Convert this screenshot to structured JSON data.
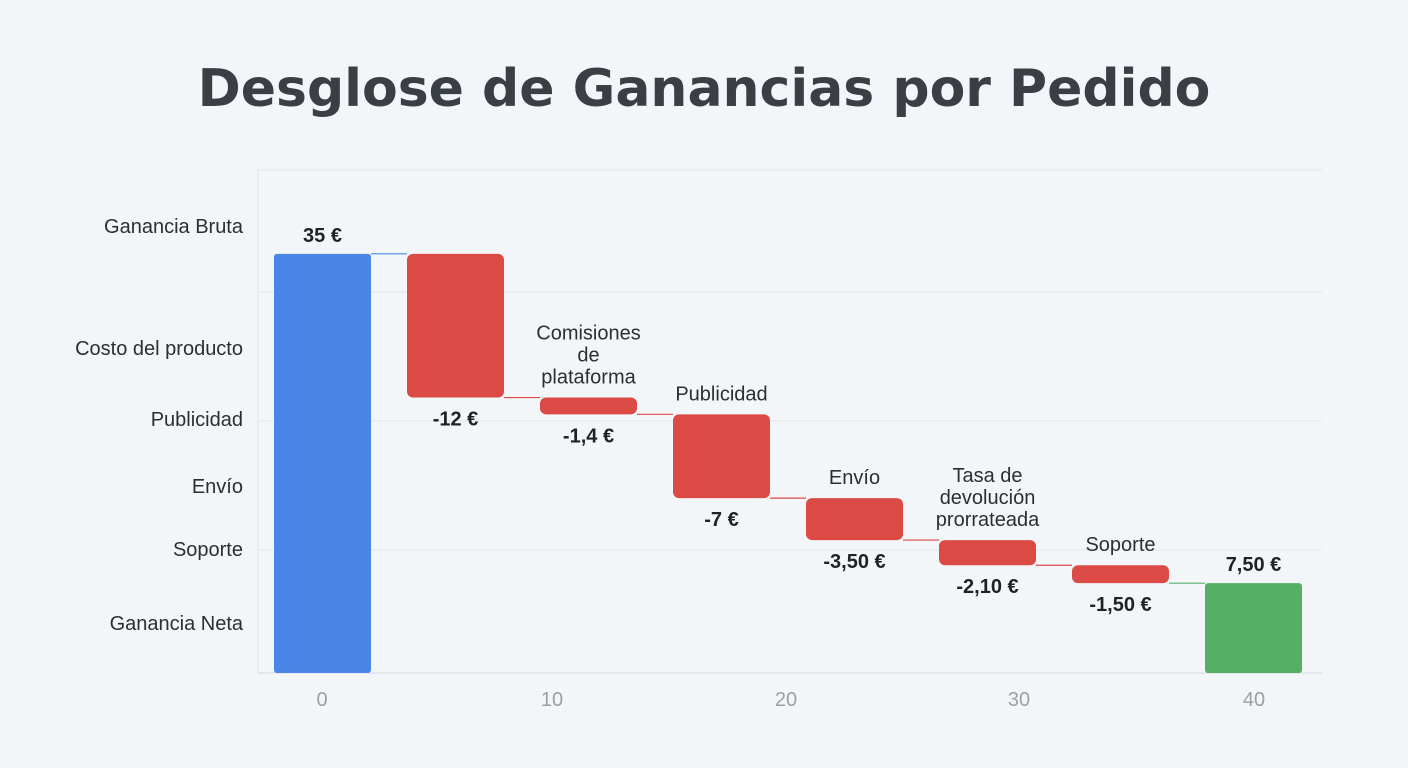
{
  "chart_data": {
    "type": "waterfall",
    "title": "Desglose de Ganancias por Pedido",
    "y_labels": [
      "Ganancia Bruta",
      "Costo del producto",
      "Publicidad",
      "Envío",
      "Soporte",
      "Ganancia Neta"
    ],
    "x_ticks": [
      "0",
      "10",
      "20",
      "30",
      "40"
    ],
    "steps": [
      {
        "label": "Ganancia Bruta",
        "bar_label": "",
        "value": 35,
        "value_label": "35 €",
        "kind": "total"
      },
      {
        "label": "Costo del producto",
        "bar_label": "",
        "value": -12,
        "value_label": "-12 €",
        "kind": "decrease"
      },
      {
        "label": "Comisiones de plataforma",
        "bar_label": "Comisiones\nde\nplataforma",
        "value": -1.4,
        "value_label": "-1,4 €",
        "kind": "decrease"
      },
      {
        "label": "Publicidad",
        "bar_label": "Publicidad",
        "value": -7,
        "value_label": "-7 €",
        "kind": "decrease"
      },
      {
        "label": "Envío",
        "bar_label": "Envío",
        "value": -3.5,
        "value_label": "-3,50 €",
        "kind": "decrease"
      },
      {
        "label": "Tasa de devolución prorrateada",
        "bar_label": "Tasa de\ndevolución\nprorrateada",
        "value": -2.1,
        "value_label": "-2,10 €",
        "kind": "decrease"
      },
      {
        "label": "Soporte",
        "bar_label": "Soporte",
        "value": -1.5,
        "value_label": "-1,50 €",
        "kind": "decrease"
      },
      {
        "label": "Ganancia Neta",
        "bar_label": "",
        "value": 7.5,
        "value_label": "7,50 €",
        "kind": "total"
      }
    ],
    "ylim": [
      0,
      42
    ],
    "grid": true,
    "colors": {
      "total_start": "#4a86e8",
      "decrease": "#dc4a46",
      "total_end": "#55b065",
      "connector_start": "#4a86e8",
      "connector_decrease": "#dc4a46",
      "connector_end": "#55b065"
    }
  }
}
